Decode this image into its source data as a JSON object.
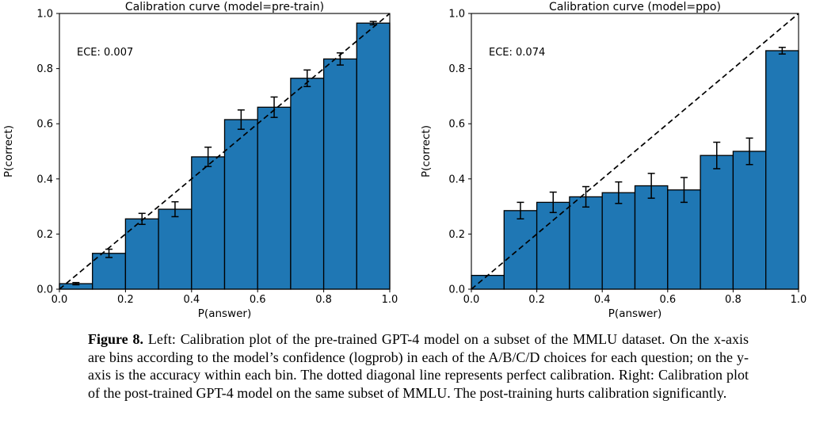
{
  "figure": {
    "caption": {
      "label": "Figure 8.",
      "body": "Left: Calibration plot of the pre-trained GPT-4 model on a subset of the MMLU dataset. On the x-axis are bins according to the model’s confidence (logprob) in each of the A/B/C/D choices for each question; on the y-axis is the accuracy within each bin. The dotted diagonal line represents perfect calibration. Right: Calibration plot of the post-trained GPT-4 model on the same subset of MMLU. The post-training hurts calibration significantly."
    }
  },
  "chart_data": [
    {
      "type": "bar",
      "title": "Calibration curve (model=pre-train)",
      "annotation": "ECE: 0.007",
      "xlabel": "P(answer)",
      "ylabel": "P(correct)",
      "xlim": [
        0.0,
        1.0
      ],
      "ylim": [
        0.0,
        1.0
      ],
      "xticks": [
        0.0,
        0.2,
        0.4,
        0.6,
        0.8,
        1.0
      ],
      "yticks": [
        0.0,
        0.2,
        0.4,
        0.6,
        0.8,
        1.0
      ],
      "bin_width": 0.1,
      "bin_centers": [
        0.05,
        0.15,
        0.25,
        0.35,
        0.45,
        0.55,
        0.65,
        0.75,
        0.85,
        0.95
      ],
      "values": [
        0.02,
        0.13,
        0.255,
        0.29,
        0.48,
        0.615,
        0.66,
        0.765,
        0.835,
        0.965
      ],
      "errors": [
        0.004,
        0.015,
        0.02,
        0.027,
        0.035,
        0.035,
        0.037,
        0.03,
        0.022,
        0.006
      ],
      "diagonal": true,
      "grid": false,
      "bar_color": "#1f77b4",
      "edge_color": "#000000"
    },
    {
      "type": "bar",
      "title": "Calibration curve (model=ppo)",
      "annotation": "ECE: 0.074",
      "xlabel": "P(answer)",
      "ylabel": "P(correct)",
      "xlim": [
        0.0,
        1.0
      ],
      "ylim": [
        0.0,
        1.0
      ],
      "xticks": [
        0.0,
        0.2,
        0.4,
        0.6,
        0.8,
        1.0
      ],
      "yticks": [
        0.0,
        0.2,
        0.4,
        0.6,
        0.8,
        1.0
      ],
      "bin_width": 0.1,
      "bin_centers": [
        0.05,
        0.15,
        0.25,
        0.35,
        0.45,
        0.55,
        0.65,
        0.75,
        0.85,
        0.95
      ],
      "values": [
        0.05,
        0.285,
        0.315,
        0.335,
        0.35,
        0.375,
        0.36,
        0.485,
        0.5,
        0.865
      ],
      "errors": [
        0,
        0.03,
        0.037,
        0.037,
        0.039,
        0.045,
        0.045,
        0.048,
        0.048,
        0.012
      ],
      "diagonal": true,
      "grid": false,
      "bar_color": "#1f77b4",
      "edge_color": "#000000"
    }
  ]
}
